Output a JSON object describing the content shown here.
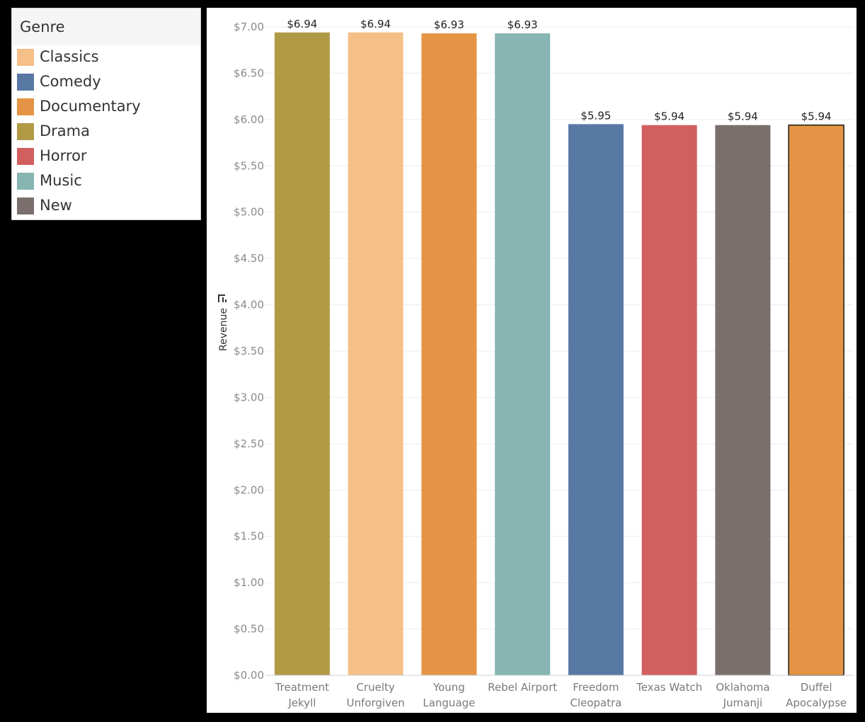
{
  "legend": {
    "title": "Genre",
    "items": [
      {
        "label": "Classics",
        "color": "#f5bf88"
      },
      {
        "label": "Comedy",
        "color": "#5878a4"
      },
      {
        "label": "Documentary",
        "color": "#e49444"
      },
      {
        "label": "Drama",
        "color": "#b19a45"
      },
      {
        "label": "Horror",
        "color": "#d15f5f"
      },
      {
        "label": "Music",
        "color": "#86b5b2"
      },
      {
        "label": "New",
        "color": "#7a6f6c"
      }
    ]
  },
  "chart_data": {
    "type": "bar",
    "title": "",
    "xlabel": "",
    "ylabel": "Revenue",
    "ylim": [
      0,
      7
    ],
    "grid": true,
    "yticks": [
      "$0.00",
      "$0.50",
      "$1.00",
      "$1.50",
      "$2.00",
      "$2.50",
      "$3.00",
      "$3.50",
      "$4.00",
      "$4.50",
      "$5.00",
      "$5.50",
      "$6.00",
      "$6.50",
      "$7.00"
    ],
    "categories": [
      [
        "Treatment",
        "Jekyll"
      ],
      [
        "Cruelty",
        "Unforgiven"
      ],
      [
        "Young",
        "Language"
      ],
      [
        "Rebel Airport"
      ],
      [
        "Freedom",
        "Cleopatra"
      ],
      [
        "Texas Watch"
      ],
      [
        "Oklahoma",
        "Jumanji"
      ],
      [
        "Duffel",
        "Apocalypse"
      ]
    ],
    "values": [
      6.94,
      6.94,
      6.93,
      6.93,
      5.95,
      5.94,
      5.94,
      5.94
    ],
    "value_labels": [
      "$6.94",
      "$6.94",
      "$6.93",
      "$6.93",
      "$5.95",
      "$5.94",
      "$5.94",
      "$5.94"
    ],
    "genres": [
      "Drama",
      "Classics",
      "Documentary",
      "Music",
      "Comedy",
      "Horror",
      "New",
      "Documentary"
    ],
    "highlighted_index": 7
  }
}
